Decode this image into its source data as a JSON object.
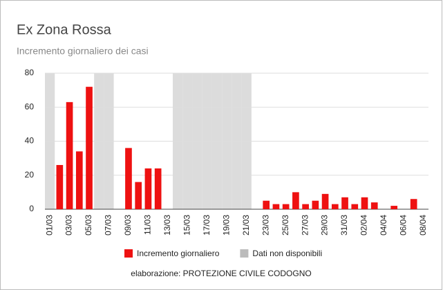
{
  "chart_data": {
    "type": "bar",
    "title": "Ex Zona Rossa",
    "subtitle": "Incremento giornaliero dei casi",
    "footer": "elaborazione:  PROTEZIONE CIVILE CODOGNO",
    "categories": [
      "01/03",
      null,
      "03/03",
      null,
      "05/03",
      null,
      "07/03",
      null,
      "09/03",
      null,
      "11/03",
      null,
      "13/03",
      null,
      "15/03",
      null,
      "17/03",
      null,
      "19/03",
      null,
      "21/03",
      null,
      "23/03",
      null,
      "25/03",
      null,
      "27/03",
      null,
      "29/03",
      null,
      "31/03",
      null,
      "02/04",
      null,
      "04/04",
      null,
      "06/04",
      null,
      "08/04"
    ],
    "series": [
      {
        "name": "Dati non disponibili",
        "color": "#dcdcdc",
        "background": true,
        "values": [
          80,
          null,
          null,
          null,
          null,
          80,
          80,
          null,
          null,
          null,
          null,
          null,
          null,
          80,
          80,
          80,
          80,
          80,
          80,
          80,
          80,
          null,
          null,
          null,
          null,
          null,
          null,
          null,
          null,
          null,
          null,
          null,
          null,
          null,
          null,
          null,
          null,
          null,
          null
        ]
      },
      {
        "name": "Incremento giornaliero",
        "color": "#ee1111",
        "values": [
          null,
          26,
          63,
          34,
          72,
          null,
          null,
          0,
          36,
          16,
          24,
          24,
          0,
          null,
          null,
          null,
          null,
          null,
          null,
          null,
          null,
          0,
          5,
          3,
          3,
          10,
          3,
          5,
          9,
          3,
          7,
          3,
          7,
          4,
          0,
          2,
          0,
          6,
          0
        ]
      }
    ],
    "legend_order": [
      1,
      0
    ],
    "ylim": [
      0,
      80
    ],
    "yticks": [
      0,
      20,
      40,
      60,
      80
    ],
    "grid": true
  }
}
